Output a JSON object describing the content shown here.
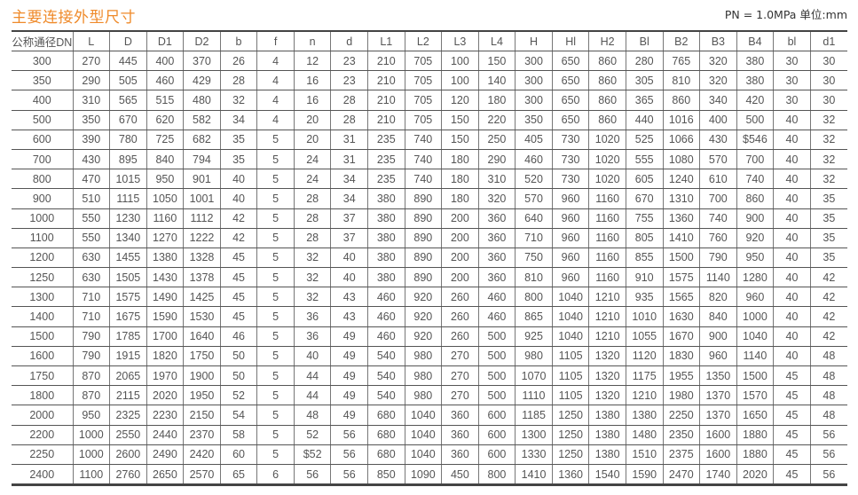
{
  "title": "主要连接外型尺寸",
  "unit_note": "PN = 1.0MPa  单位:mm",
  "colors": {
    "title": "#ef8a2a",
    "rule": "#444444"
  },
  "table": {
    "headers": [
      "公称通径DN",
      "L",
      "D",
      "D1",
      "D2",
      "b",
      "f",
      "n",
      "d",
      "L1",
      "L2",
      "L3",
      "L4",
      "H",
      "Hl",
      "H2",
      "Bl",
      "B2",
      "B3",
      "B4",
      "bl",
      "d1"
    ],
    "rows": [
      [
        "300",
        "270",
        "445",
        "400",
        "370",
        "26",
        "4",
        "12",
        "23",
        "210",
        "705",
        "100",
        "150",
        "300",
        "650",
        "860",
        "280",
        "765",
        "320",
        "380",
        "30",
        "30"
      ],
      [
        "350",
        "290",
        "505",
        "460",
        "429",
        "28",
        "4",
        "16",
        "23",
        "210",
        "705",
        "100",
        "140",
        "300",
        "650",
        "860",
        "305",
        "810",
        "320",
        "380",
        "30",
        "30"
      ],
      [
        "400",
        "310",
        "565",
        "515",
        "480",
        "32",
        "4",
        "16",
        "28",
        "210",
        "705",
        "120",
        "180",
        "300",
        "650",
        "860",
        "365",
        "860",
        "340",
        "420",
        "30",
        "30"
      ],
      [
        "500",
        "350",
        "670",
        "620",
        "582",
        "34",
        "4",
        "20",
        "28",
        "210",
        "705",
        "150",
        "220",
        "350",
        "650",
        "860",
        "440",
        "1016",
        "400",
        "500",
        "40",
        "32"
      ],
      [
        "600",
        "390",
        "780",
        "725",
        "682",
        "35",
        "5",
        "20",
        "31",
        "235",
        "740",
        "150",
        "250",
        "405",
        "730",
        "1020",
        "525",
        "1066",
        "430",
        "$546",
        "40",
        "32"
      ],
      [
        "700",
        "430",
        "895",
        "840",
        "794",
        "35",
        "5",
        "24",
        "31",
        "235",
        "740",
        "180",
        "290",
        "460",
        "730",
        "1020",
        "555",
        "1080",
        "570",
        "700",
        "40",
        "32"
      ],
      [
        "800",
        "470",
        "1015",
        "950",
        "901",
        "40",
        "5",
        "24",
        "34",
        "235",
        "740",
        "180",
        "310",
        "520",
        "730",
        "1020",
        "605",
        "1240",
        "610",
        "740",
        "40",
        "32"
      ],
      [
        "900",
        "510",
        "1115",
        "1050",
        "1001",
        "40",
        "5",
        "28",
        "34",
        "380",
        "890",
        "180",
        "320",
        "570",
        "960",
        "1160",
        "670",
        "1310",
        "700",
        "860",
        "40",
        "35"
      ],
      [
        "1000",
        "550",
        "1230",
        "1160",
        "1112",
        "42",
        "5",
        "28",
        "37",
        "380",
        "890",
        "200",
        "360",
        "640",
        "960",
        "1160",
        "755",
        "1360",
        "740",
        "900",
        "40",
        "35"
      ],
      [
        "1100",
        "550",
        "1340",
        "1270",
        "1222",
        "42",
        "5",
        "28",
        "37",
        "380",
        "890",
        "200",
        "360",
        "710",
        "960",
        "1160",
        "805",
        "1410",
        "760",
        "920",
        "40",
        "35"
      ],
      [
        "1200",
        "630",
        "1455",
        "1380",
        "1328",
        "45",
        "5",
        "32",
        "40",
        "380",
        "890",
        "200",
        "360",
        "750",
        "960",
        "1160",
        "855",
        "1500",
        "790",
        "950",
        "40",
        "35"
      ],
      [
        "1250",
        "630",
        "1505",
        "1430",
        "1378",
        "45",
        "5",
        "32",
        "40",
        "380",
        "890",
        "200",
        "360",
        "810",
        "960",
        "1160",
        "910",
        "1575",
        "1140",
        "1280",
        "40",
        "42"
      ],
      [
        "1300",
        "710",
        "1575",
        "1490",
        "1425",
        "45",
        "5",
        "32",
        "43",
        "460",
        "920",
        "260",
        "460",
        "800",
        "1040",
        "1210",
        "935",
        "1565",
        "820",
        "960",
        "40",
        "42"
      ],
      [
        "1400",
        "710",
        "1675",
        "1590",
        "1530",
        "45",
        "5",
        "36",
        "43",
        "460",
        "920",
        "260",
        "460",
        "865",
        "1040",
        "1210",
        "1010",
        "1630",
        "840",
        "1000",
        "40",
        "42"
      ],
      [
        "1500",
        "790",
        "1785",
        "1700",
        "1640",
        "46",
        "5",
        "36",
        "49",
        "460",
        "920",
        "260",
        "500",
        "925",
        "1040",
        "1210",
        "1055",
        "1670",
        "900",
        "1040",
        "40",
        "42"
      ],
      [
        "1600",
        "790",
        "1915",
        "1820",
        "1750",
        "50",
        "5",
        "40",
        "49",
        "540",
        "980",
        "270",
        "500",
        "980",
        "1105",
        "1320",
        "1120",
        "1830",
        "960",
        "1140",
        "40",
        "48"
      ],
      [
        "1750",
        "870",
        "2065",
        "1970",
        "1900",
        "50",
        "5",
        "44",
        "49",
        "540",
        "980",
        "270",
        "500",
        "1070",
        "1105",
        "1320",
        "1175",
        "1955",
        "1350",
        "1500",
        "45",
        "48"
      ],
      [
        "1800",
        "870",
        "2115",
        "2020",
        "1950",
        "52",
        "5",
        "44",
        "49",
        "540",
        "980",
        "270",
        "500",
        "1110",
        "1105",
        "1320",
        "1210",
        "1980",
        "1370",
        "1570",
        "45",
        "48"
      ],
      [
        "2000",
        "950",
        "2325",
        "2230",
        "2150",
        "54",
        "5",
        "48",
        "49",
        "680",
        "1040",
        "360",
        "600",
        "1185",
        "1250",
        "1380",
        "1380",
        "2250",
        "1370",
        "1650",
        "45",
        "48"
      ],
      [
        "2200",
        "1000",
        "2550",
        "2440",
        "2370",
        "58",
        "5",
        "52",
        "56",
        "680",
        "1040",
        "360",
        "600",
        "1300",
        "1250",
        "1380",
        "1480",
        "2350",
        "1600",
        "1880",
        "45",
        "56"
      ],
      [
        "2250",
        "1000",
        "2600",
        "2490",
        "2420",
        "60",
        "5",
        "$52",
        "56",
        "680",
        "1040",
        "360",
        "600",
        "1330",
        "1250",
        "1380",
        "1510",
        "2375",
        "1600",
        "1880",
        "45",
        "56"
      ],
      [
        "2400",
        "1100",
        "2760",
        "2650",
        "2570",
        "65",
        "6",
        "56",
        "56",
        "850",
        "1090",
        "450",
        "800",
        "1410",
        "1360",
        "1540",
        "1590",
        "2470",
        "1740",
        "2020",
        "45",
        "56"
      ]
    ]
  }
}
